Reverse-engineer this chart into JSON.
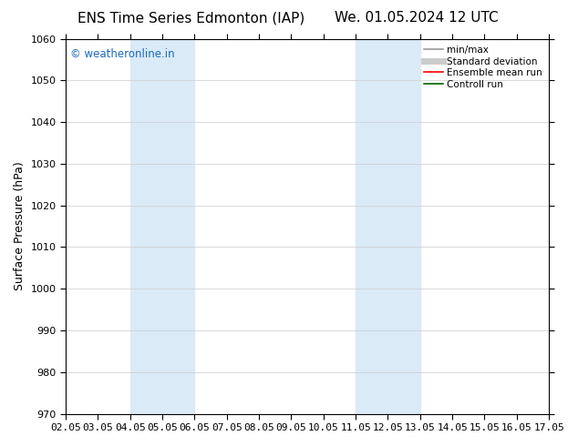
{
  "title_left": "ENS Time Series Edmonton (IAP)",
  "title_right": "We. 01.05.2024 12 UTC",
  "ylabel": "Surface Pressure (hPa)",
  "ylim": [
    970,
    1060
  ],
  "yticks": [
    970,
    980,
    990,
    1000,
    1010,
    1020,
    1030,
    1040,
    1050,
    1060
  ],
  "xlim": [
    0,
    15
  ],
  "xtick_labels": [
    "02.05",
    "03.05",
    "04.05",
    "05.05",
    "06.05",
    "07.05",
    "08.05",
    "09.05",
    "10.05",
    "11.05",
    "12.05",
    "13.05",
    "14.05",
    "15.05",
    "16.05",
    "17.05"
  ],
  "xtick_positions": [
    0,
    1,
    2,
    3,
    4,
    5,
    6,
    7,
    8,
    9,
    10,
    11,
    12,
    13,
    14,
    15
  ],
  "shaded_bands": [
    {
      "x_start": 2.0,
      "x_end": 4.0,
      "color": "#daeaf7"
    },
    {
      "x_start": 9.0,
      "x_end": 11.0,
      "color": "#daeaf7"
    }
  ],
  "background_color": "#ffffff",
  "plot_bg_color": "#ffffff",
  "grid_color": "#cccccc",
  "watermark_text": "© weatheronline.in",
  "watermark_color": "#1a6abf",
  "legend_items": [
    {
      "label": "min/max",
      "color": "#999999",
      "lw": 1.2,
      "style": "solid"
    },
    {
      "label": "Standard deviation",
      "color": "#cccccc",
      "lw": 5,
      "style": "solid"
    },
    {
      "label": "Ensemble mean run",
      "color": "#ff0000",
      "lw": 1.2,
      "style": "solid"
    },
    {
      "label": "Controll run",
      "color": "#006400",
      "lw": 1.2,
      "style": "solid"
    }
  ],
  "title_fontsize": 11,
  "axis_label_fontsize": 9,
  "tick_fontsize": 8,
  "legend_fontsize": 7.5
}
